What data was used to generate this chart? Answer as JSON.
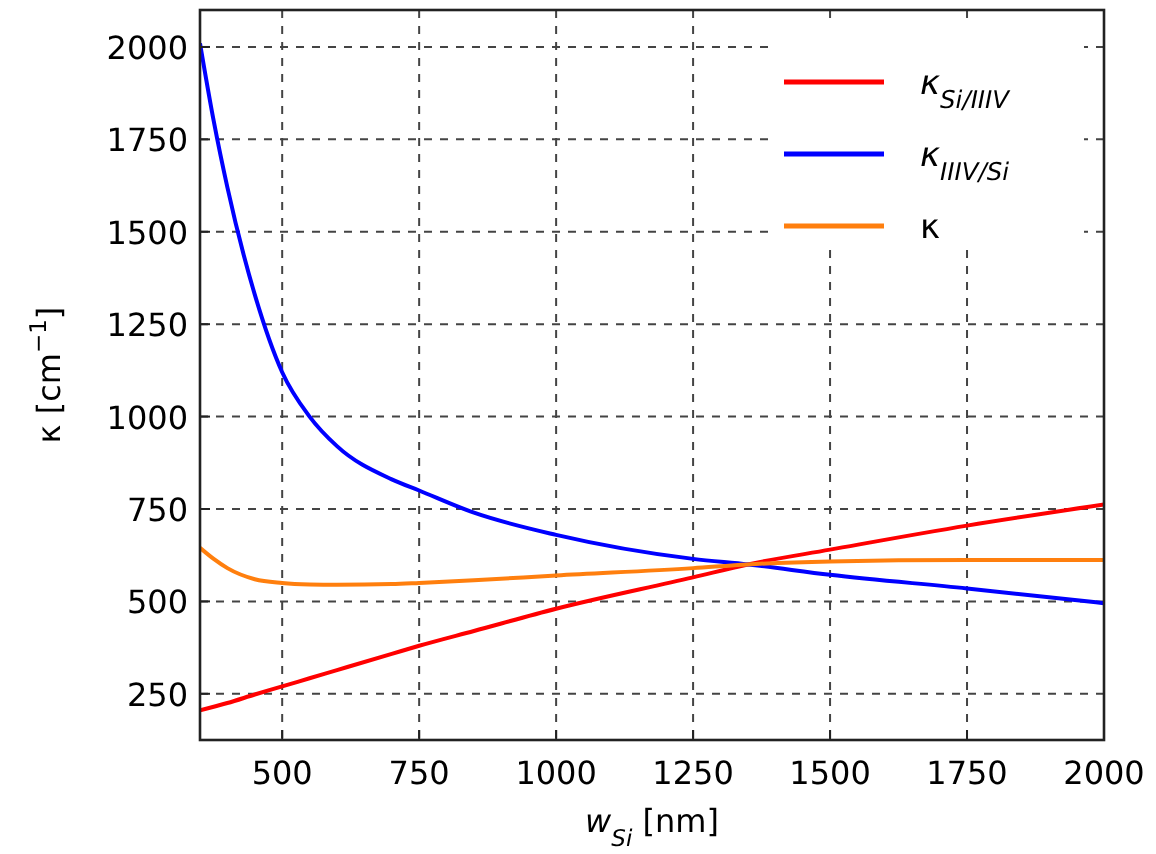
{
  "chart_data": {
    "type": "line",
    "xlabel": "w$_{Si}$ [nm]",
    "ylabel": "κ [cm$^{−1}$]",
    "xlim": [
      350,
      2000
    ],
    "xticks": [
      500,
      750,
      1000,
      1250,
      1500,
      1750,
      2000
    ],
    "ylim": [
      125,
      2100
    ],
    "yticks": [
      250,
      500,
      750,
      1000,
      1250,
      1500,
      1750,
      2000
    ],
    "grid": true,
    "legend": "top right",
    "line_style": "solid",
    "marker": "none",
    "x": [
      350,
      375,
      400,
      450,
      500,
      550,
      600,
      700,
      750,
      850,
      1000,
      1250,
      1350,
      1500,
      1750,
      2000
    ],
    "series": [
      {
        "name": "κ$_{Si/IIIV}$",
        "color": "#ff0000",
        "values": [
          205,
          215,
          225,
          248,
          270,
          292,
          314,
          358,
          380,
          420,
          480,
          565,
          600,
          640,
          705,
          762
        ]
      },
      {
        "name": "κ$_{IIIV/Si}$",
        "color": "#0000ff",
        "values": [
          2010,
          1800,
          1620,
          1330,
          1120,
          1000,
          920,
          830,
          800,
          740,
          680,
          615,
          600,
          572,
          535,
          495
        ]
      },
      {
        "name": "κ",
        "color": "#ff7f0e",
        "values": [
          645,
          615,
          590,
          560,
          550,
          546,
          545,
          547,
          550,
          557,
          570,
          590,
          600,
          608,
          612,
          612
        ]
      }
    ]
  }
}
